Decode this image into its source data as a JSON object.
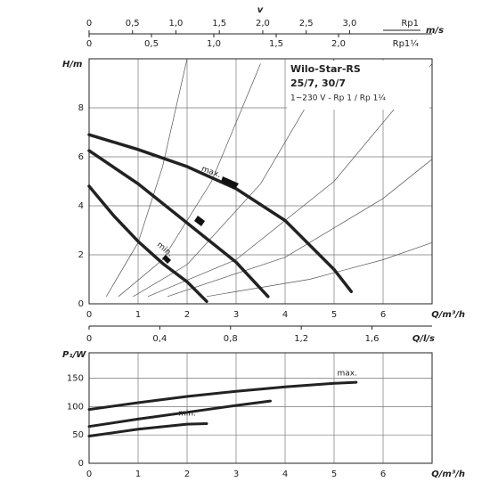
{
  "chart_data": [
    {
      "type": "line",
      "title": "Wilo-Star-RS",
      "subtitle": "25/7, 30/7",
      "note": "1~230 V - Rp 1 / Rp 1¼",
      "x_label": "Q/m³/h",
      "y_label": "H/m",
      "xlim": [
        0,
        7
      ],
      "ylim": [
        0,
        10
      ],
      "xticks": [
        0,
        1,
        2,
        3,
        4,
        5,
        6
      ],
      "yticks": [
        0,
        2,
        4,
        6,
        8
      ],
      "grid": true,
      "velocity_label": "v",
      "velocity_unit": "m/s",
      "top_axes": [
        {
          "name": "Rp1",
          "xlim": [
            0,
            3.95
          ],
          "xticks": [
            0,
            {
              "value": 0.5,
              "label": "0,5"
            },
            {
              "value": 1,
              "label": "1,0"
            },
            {
              "value": 1.5,
              "label": "1,5"
            },
            {
              "value": 2,
              "label": "2,0"
            },
            {
              "value": 2.5,
              "label": "2,5"
            },
            {
              "value": 3,
              "label": "3,0"
            }
          ]
        },
        {
          "name": "Rp1¼",
          "xlim": [
            0,
            2.75
          ],
          "xticks": [
            0,
            {
              "value": 0.5,
              "label": "0,5"
            },
            {
              "value": 1,
              "label": "1,0"
            },
            {
              "value": 1.5,
              "label": "1,5"
            },
            {
              "value": 2,
              "label": "2,0"
            }
          ]
        }
      ],
      "flow_axis": {
        "label": "Q/l/s",
        "xlim": [
          0,
          1.94
        ],
        "xticks": [
          0,
          {
            "value": 0.4,
            "label": "0,4"
          },
          {
            "value": 0.8,
            "label": "0,8"
          },
          {
            "value": 1.2,
            "label": "1,2"
          },
          {
            "value": 1.6,
            "label": "1,6"
          }
        ]
      },
      "series": [
        {
          "label": "max.",
          "color": "#222",
          "x": [
            0,
            1,
            2,
            3,
            4,
            5,
            5.35
          ],
          "values": [
            6.9,
            6.3,
            5.6,
            4.7,
            3.4,
            1.4,
            0.5
          ]
        },
        {
          "color": "#222",
          "x": [
            0,
            1,
            2,
            3,
            3.65
          ],
          "values": [
            6.25,
            4.9,
            3.3,
            1.7,
            0.3
          ]
        },
        {
          "label": "min.",
          "color": "#222",
          "x": [
            0,
            0.5,
            1,
            1.5,
            2,
            2.4
          ],
          "values": [
            4.8,
            3.6,
            2.55,
            1.65,
            0.9,
            0.1
          ]
        }
      ],
      "system_curves": [
        {
          "x": [
            0.35,
            1,
            1.5,
            2
          ],
          "values": [
            0.3,
            2.5,
            5.6,
            10
          ]
        },
        {
          "x": [
            0.6,
            1.5,
            2.5,
            3.5
          ],
          "values": [
            0.3,
            1.8,
            5,
            9.8
          ]
        },
        {
          "x": [
            0.9,
            2,
            3.5,
            5
          ],
          "values": [
            0.3,
            1.6,
            4.9,
            10
          ]
        },
        {
          "x": [
            1.2,
            3,
            5,
            7
          ],
          "values": [
            0.3,
            1.8,
            5,
            9.8
          ]
        },
        {
          "x": [
            1.6,
            4,
            6,
            7
          ],
          "values": [
            0.3,
            1.9,
            4.3,
            5.9
          ]
        },
        {
          "x": [
            2.4,
            4.5,
            6,
            7
          ],
          "values": [
            0.3,
            1,
            1.8,
            2.5
          ]
        }
      ]
    },
    {
      "type": "line",
      "x_label": "Q/m³/h",
      "y_label": "P₁/W",
      "xlim": [
        0,
        7
      ],
      "ylim": [
        0,
        195
      ],
      "xticks": [
        0,
        1,
        2,
        3,
        4,
        5,
        6
      ],
      "yticks": [
        0,
        50,
        100,
        150
      ],
      "grid": true,
      "series": [
        {
          "label": "max.",
          "color": "#222",
          "x": [
            0,
            1,
            2,
            3,
            4,
            5,
            5.45
          ],
          "values": [
            95,
            107,
            118,
            127,
            135,
            141,
            143
          ]
        },
        {
          "color": "#222",
          "x": [
            0,
            1,
            2,
            3,
            3.7
          ],
          "values": [
            65,
            78,
            90,
            102,
            110
          ]
        },
        {
          "label": "min.",
          "color": "#222",
          "x": [
            0,
            1,
            2,
            2.4
          ],
          "values": [
            48,
            60,
            69,
            70
          ]
        }
      ]
    }
  ]
}
